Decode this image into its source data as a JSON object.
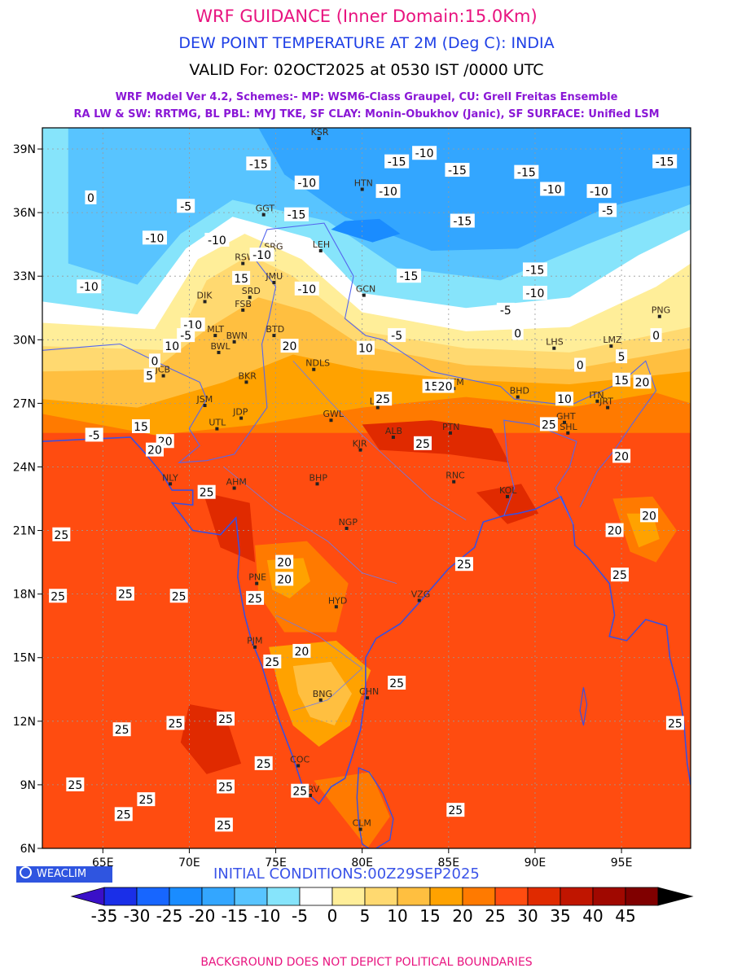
{
  "header": {
    "title": "WRF GUIDANCE (Inner Domain:15.0Km)",
    "subtitle": "DEW POINT TEMPERATURE AT 2M (Deg C): INDIA",
    "valid": "VALID For: 02OCT2025 at 0530 IST /0000 UTC",
    "schemes_line1": "WRF Model Ver 4.2, Schemes:- MP: WSM6-Class Graupel, CU: Grell Freitas Ensemble",
    "schemes_line2": "RA LW & SW: RRTMG, BL PBL: MYJ TKE, SF CLAY: Monin-Obukhov (Janic), SF SURFACE: Unified LSM"
  },
  "map": {
    "lon_range": [
      61.5,
      99
    ],
    "lat_range": [
      6,
      40
    ],
    "lat_ticks": [
      "6N",
      "9N",
      "12N",
      "15N",
      "18N",
      "21N",
      "24N",
      "27N",
      "30N",
      "33N",
      "36N",
      "39N"
    ],
    "lon_ticks": [
      "65E",
      "70E",
      "75E",
      "80E",
      "85E",
      "90E",
      "95E"
    ],
    "cities": [
      {
        "name": "KSR",
        "lon": 77.5,
        "lat": 39.5
      },
      {
        "name": "HTN",
        "lon": 80.0,
        "lat": 37.1
      },
      {
        "name": "GGT",
        "lon": 74.3,
        "lat": 35.9
      },
      {
        "name": "LEH",
        "lon": 77.6,
        "lat": 34.2
      },
      {
        "name": "RSW",
        "lon": 73.1,
        "lat": 33.6
      },
      {
        "name": "SRG",
        "lon": 74.8,
        "lat": 34.1
      },
      {
        "name": "JMU",
        "lon": 74.9,
        "lat": 32.7
      },
      {
        "name": "SRD",
        "lon": 73.5,
        "lat": 32.0
      },
      {
        "name": "FSB",
        "lon": 73.1,
        "lat": 31.4
      },
      {
        "name": "DIK",
        "lon": 70.9,
        "lat": 31.8
      },
      {
        "name": "BTD",
        "lon": 74.9,
        "lat": 30.2
      },
      {
        "name": "MLT",
        "lon": 71.5,
        "lat": 30.2
      },
      {
        "name": "BWN",
        "lon": 72.6,
        "lat": 29.9
      },
      {
        "name": "BWL",
        "lon": 71.7,
        "lat": 29.4
      },
      {
        "name": "NDLS",
        "lon": 77.2,
        "lat": 28.6
      },
      {
        "name": "JCB",
        "lon": 68.5,
        "lat": 28.3
      },
      {
        "name": "BKR",
        "lon": 73.3,
        "lat": 28.0
      },
      {
        "name": "JSM",
        "lon": 70.9,
        "lat": 26.9
      },
      {
        "name": "JDP",
        "lon": 73.0,
        "lat": 26.3
      },
      {
        "name": "UTL",
        "lon": 71.6,
        "lat": 25.8
      },
      {
        "name": "LKN",
        "lon": 80.9,
        "lat": 26.8
      },
      {
        "name": "GWL",
        "lon": 78.2,
        "lat": 26.2
      },
      {
        "name": "KTM",
        "lon": 85.3,
        "lat": 27.7
      },
      {
        "name": "PTN",
        "lon": 85.1,
        "lat": 25.6
      },
      {
        "name": "ALB",
        "lon": 81.8,
        "lat": 25.4
      },
      {
        "name": "KJR",
        "lon": 79.9,
        "lat": 24.8
      },
      {
        "name": "BHP",
        "lon": 77.4,
        "lat": 23.2
      },
      {
        "name": "AHM",
        "lon": 72.6,
        "lat": 23.0
      },
      {
        "name": "NLY",
        "lon": 68.9,
        "lat": 23.2
      },
      {
        "name": "RNC",
        "lon": 85.3,
        "lat": 23.3
      },
      {
        "name": "KOL",
        "lon": 88.4,
        "lat": 22.6
      },
      {
        "name": "NGP",
        "lon": 79.1,
        "lat": 21.1
      },
      {
        "name": "PNE",
        "lon": 73.9,
        "lat": 18.5
      },
      {
        "name": "HYD",
        "lon": 78.5,
        "lat": 17.4
      },
      {
        "name": "VZG",
        "lon": 83.3,
        "lat": 17.7
      },
      {
        "name": "PJM",
        "lon": 73.8,
        "lat": 15.5
      },
      {
        "name": "BNG",
        "lon": 77.6,
        "lat": 13.0
      },
      {
        "name": "CHN",
        "lon": 80.3,
        "lat": 13.1
      },
      {
        "name": "COC",
        "lon": 76.3,
        "lat": 9.9
      },
      {
        "name": "TRV",
        "lon": 77.0,
        "lat": 8.5
      },
      {
        "name": "CLM",
        "lon": 79.9,
        "lat": 6.9
      },
      {
        "name": "BHD",
        "lon": 89.0,
        "lat": 27.3
      },
      {
        "name": "GHT",
        "lon": 91.7,
        "lat": 26.1
      },
      {
        "name": "SHL",
        "lon": 91.9,
        "lat": 25.6
      },
      {
        "name": "ITN",
        "lon": 93.6,
        "lat": 27.1
      },
      {
        "name": "JRT",
        "lon": 94.2,
        "lat": 26.8
      },
      {
        "name": "LHS",
        "lon": 91.1,
        "lat": 29.6
      },
      {
        "name": "LMZ",
        "lon": 94.4,
        "lat": 29.7
      },
      {
        "name": "PNG",
        "lon": 97.2,
        "lat": 31.1
      },
      {
        "name": "GCN",
        "lon": 80.1,
        "lat": 32.1
      }
    ],
    "contour_labels": [
      {
        "text": "-15",
        "lon": 74.0,
        "lat": 38.3
      },
      {
        "text": "-10",
        "lon": 76.8,
        "lat": 37.4
      },
      {
        "text": "-10",
        "lon": 83.6,
        "lat": 38.8
      },
      {
        "text": "-15",
        "lon": 82.0,
        "lat": 38.4
      },
      {
        "text": "-15",
        "lon": 85.5,
        "lat": 38.0
      },
      {
        "text": "-15",
        "lon": 89.5,
        "lat": 37.9
      },
      {
        "text": "-15",
        "lon": 97.5,
        "lat": 38.4
      },
      {
        "text": "-10",
        "lon": 91.0,
        "lat": 37.1
      },
      {
        "text": "-10",
        "lon": 93.7,
        "lat": 37.0
      },
      {
        "text": "-10",
        "lon": 81.5,
        "lat": 37.0
      },
      {
        "text": "-5",
        "lon": 69.8,
        "lat": 36.3
      },
      {
        "text": "-5",
        "lon": 94.2,
        "lat": 36.1
      },
      {
        "text": "0",
        "lon": 64.3,
        "lat": 36.7
      },
      {
        "text": "-10",
        "lon": 68.0,
        "lat": 34.8
      },
      {
        "text": "-10",
        "lon": 74.2,
        "lat": 34.0
      },
      {
        "text": "-15",
        "lon": 76.2,
        "lat": 35.9
      },
      {
        "text": "-15",
        "lon": 82.7,
        "lat": 33.0
      },
      {
        "text": "-15",
        "lon": 85.8,
        "lat": 35.6
      },
      {
        "text": "-15",
        "lon": 90.0,
        "lat": 33.3
      },
      {
        "text": "-10",
        "lon": 90.0,
        "lat": 32.2
      },
      {
        "text": "-10",
        "lon": 64.2,
        "lat": 32.5
      },
      {
        "text": "-10",
        "lon": 71.6,
        "lat": 34.7
      },
      {
        "text": "-10",
        "lon": 76.8,
        "lat": 32.4
      },
      {
        "text": "15",
        "lon": 73.0,
        "lat": 32.9
      },
      {
        "text": "-10",
        "lon": 70.2,
        "lat": 30.7
      },
      {
        "text": "-5",
        "lon": 69.8,
        "lat": 30.2
      },
      {
        "text": "-5",
        "lon": 88.3,
        "lat": 31.4
      },
      {
        "text": "-5",
        "lon": 82.0,
        "lat": 30.2
      },
      {
        "text": "0",
        "lon": 68.0,
        "lat": 29.0
      },
      {
        "text": "10",
        "lon": 69.0,
        "lat": 29.7
      },
      {
        "text": "20",
        "lon": 75.8,
        "lat": 29.7
      },
      {
        "text": "10",
        "lon": 80.2,
        "lat": 29.6
      },
      {
        "text": "5",
        "lon": 67.7,
        "lat": 28.3
      },
      {
        "text": "15",
        "lon": 84.0,
        "lat": 27.8
      },
      {
        "text": "20",
        "lon": 84.8,
        "lat": 27.8
      },
      {
        "text": "25",
        "lon": 81.2,
        "lat": 27.2
      },
      {
        "text": "10",
        "lon": 91.7,
        "lat": 27.2
      },
      {
        "text": "25",
        "lon": 90.8,
        "lat": 26.0
      },
      {
        "text": "15",
        "lon": 95.0,
        "lat": 28.1
      },
      {
        "text": "20",
        "lon": 96.2,
        "lat": 28.0
      },
      {
        "text": "5",
        "lon": 95.0,
        "lat": 29.2
      },
      {
        "text": "0",
        "lon": 92.6,
        "lat": 28.8
      },
      {
        "text": "0",
        "lon": 97.0,
        "lat": 30.2
      },
      {
        "text": "0",
        "lon": 89.0,
        "lat": 30.3
      },
      {
        "text": "15",
        "lon": 67.2,
        "lat": 25.9
      },
      {
        "text": "-5",
        "lon": 64.5,
        "lat": 25.5
      },
      {
        "text": "20",
        "lon": 68.6,
        "lat": 25.2
      },
      {
        "text": "20",
        "lon": 68.0,
        "lat": 24.8
      },
      {
        "text": "25",
        "lon": 83.5,
        "lat": 25.1
      },
      {
        "text": "20",
        "lon": 95.0,
        "lat": 24.5
      },
      {
        "text": "25",
        "lon": 71.0,
        "lat": 22.8
      },
      {
        "text": "20",
        "lon": 96.6,
        "lat": 21.7
      },
      {
        "text": "20",
        "lon": 94.6,
        "lat": 21.0
      },
      {
        "text": "25",
        "lon": 62.6,
        "lat": 20.8
      },
      {
        "text": "20",
        "lon": 75.5,
        "lat": 19.5
      },
      {
        "text": "20",
        "lon": 75.5,
        "lat": 18.7
      },
      {
        "text": "25",
        "lon": 85.9,
        "lat": 19.4
      },
      {
        "text": "25",
        "lon": 94.9,
        "lat": 18.9
      },
      {
        "text": "25",
        "lon": 62.4,
        "lat": 17.9
      },
      {
        "text": "25",
        "lon": 66.3,
        "lat": 18.0
      },
      {
        "text": "25",
        "lon": 69.4,
        "lat": 17.9
      },
      {
        "text": "25",
        "lon": 73.8,
        "lat": 17.8
      },
      {
        "text": "20",
        "lon": 76.5,
        "lat": 15.3
      },
      {
        "text": "25",
        "lon": 74.8,
        "lat": 14.8
      },
      {
        "text": "25",
        "lon": 82.0,
        "lat": 13.8
      },
      {
        "text": "25",
        "lon": 69.2,
        "lat": 11.9
      },
      {
        "text": "25",
        "lon": 66.1,
        "lat": 11.6
      },
      {
        "text": "25",
        "lon": 72.1,
        "lat": 12.1
      },
      {
        "text": "25",
        "lon": 98.1,
        "lat": 11.9
      },
      {
        "text": "25",
        "lon": 74.3,
        "lat": 10.0
      },
      {
        "text": "25",
        "lon": 63.4,
        "lat": 9.0
      },
      {
        "text": "25",
        "lon": 72.1,
        "lat": 8.9
      },
      {
        "text": "25",
        "lon": 76.4,
        "lat": 8.7
      },
      {
        "text": "25",
        "lon": 67.5,
        "lat": 8.3
      },
      {
        "text": "25",
        "lon": 85.4,
        "lat": 7.8
      },
      {
        "text": "25",
        "lon": 66.2,
        "lat": 7.6
      },
      {
        "text": "25",
        "lon": 72.0,
        "lat": 7.1
      }
    ]
  },
  "colorbar": {
    "labels": [
      "-35",
      "-30",
      "-25",
      "-20",
      "-15",
      "-10",
      "-5",
      "0",
      "5",
      "10",
      "15",
      "20",
      "25",
      "30",
      "35",
      "40",
      "45"
    ],
    "colors": [
      "#3a10c8",
      "#1a2fe8",
      "#1766ff",
      "#1a8cff",
      "#33a6ff",
      "#58c4ff",
      "#86e4fb",
      "#ffffff",
      "#ffee99",
      "#ffd970",
      "#ffbf40",
      "#ffa200",
      "#ff7a00",
      "#ff4c10",
      "#e02a00",
      "#c01500",
      "#a00800",
      "#800000",
      "#000000"
    ]
  },
  "brand": "WEACLIM",
  "initial_conditions": "INITIAL CONDITIONS:00Z29SEP2025",
  "footer": "BACKGROUND DOES NOT DEPICT POLITICAL BOUNDARIES"
}
